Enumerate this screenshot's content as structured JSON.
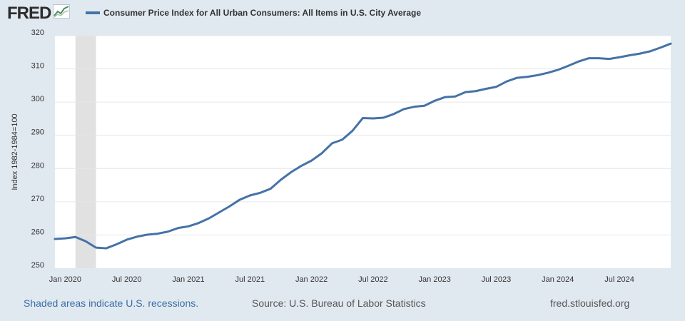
{
  "header": {
    "logo_text": "FRED",
    "logo_icon": "line-chart-icon",
    "series_title": "Consumer Price Index for All Urban Consumers: All Items in U.S. City Average",
    "series_color": "#4572a7"
  },
  "footer": {
    "recession_note": "Shaded areas indicate U.S. recessions.",
    "source": "Source: U.S. Bureau of Labor Statistics",
    "site": "fred.stlouisfed.org"
  },
  "chart_data": {
    "type": "line",
    "title": "",
    "xlabel": "",
    "ylabel": "Index 1982-1984=100",
    "ylim": [
      250,
      320
    ],
    "yticks": [
      250,
      260,
      270,
      280,
      290,
      300,
      310,
      320
    ],
    "xlim": [
      "2019-12",
      "2024-12"
    ],
    "xtick_labels": [
      {
        "date": "2020-01",
        "label": "Jan 2020"
      },
      {
        "date": "2020-07",
        "label": "Jul 2020"
      },
      {
        "date": "2021-01",
        "label": "Jan 2021"
      },
      {
        "date": "2021-07",
        "label": "Jul 2021"
      },
      {
        "date": "2022-01",
        "label": "Jan 2022"
      },
      {
        "date": "2022-07",
        "label": "Jul 2022"
      },
      {
        "date": "2023-01",
        "label": "Jan 2023"
      },
      {
        "date": "2023-07",
        "label": "Jul 2023"
      },
      {
        "date": "2024-01",
        "label": "Jan 2024"
      },
      {
        "date": "2024-07",
        "label": "Jul 2024"
      }
    ],
    "grid": true,
    "recession": {
      "start": "2020-02",
      "end": "2020-04",
      "color": "#e1e1e1"
    },
    "series": [
      {
        "color": "#4572a7",
        "x": [
          "2019-12",
          "2020-01",
          "2020-02",
          "2020-03",
          "2020-04",
          "2020-05",
          "2020-06",
          "2020-07",
          "2020-08",
          "2020-09",
          "2020-10",
          "2020-11",
          "2020-12",
          "2021-01",
          "2021-02",
          "2021-03",
          "2021-04",
          "2021-05",
          "2021-06",
          "2021-07",
          "2021-08",
          "2021-09",
          "2021-10",
          "2021-11",
          "2021-12",
          "2022-01",
          "2022-02",
          "2022-03",
          "2022-04",
          "2022-05",
          "2022-06",
          "2022-07",
          "2022-08",
          "2022-09",
          "2022-10",
          "2022-11",
          "2022-12",
          "2023-01",
          "2023-02",
          "2023-03",
          "2023-04",
          "2023-05",
          "2023-06",
          "2023-07",
          "2023-08",
          "2023-09",
          "2023-10",
          "2023-11",
          "2023-12",
          "2024-01",
          "2024-02",
          "2024-03",
          "2024-04",
          "2024-05",
          "2024-06",
          "2024-07",
          "2024-08",
          "2024-09",
          "2024-10",
          "2024-11",
          "2024-12"
        ],
        "values": [
          258.8,
          259.0,
          259.4,
          258.1,
          256.2,
          256.0,
          257.2,
          258.6,
          259.5,
          260.1,
          260.4,
          261.0,
          262.1,
          262.6,
          263.6,
          265.0,
          266.8,
          268.6,
          270.6,
          271.9,
          272.7,
          273.9,
          276.6,
          278.9,
          280.8,
          282.4,
          284.6,
          287.6,
          288.7,
          291.4,
          295.2,
          295.1,
          295.3,
          296.4,
          297.9,
          298.6,
          298.9,
          300.4,
          301.5,
          301.7,
          303.0,
          303.3,
          304.0,
          304.6,
          306.2,
          307.3,
          307.6,
          308.1,
          308.8,
          309.7,
          310.9,
          312.2,
          313.2,
          313.2,
          313.0,
          313.5,
          314.1,
          314.6,
          315.3,
          316.4,
          317.6
        ]
      }
    ]
  }
}
